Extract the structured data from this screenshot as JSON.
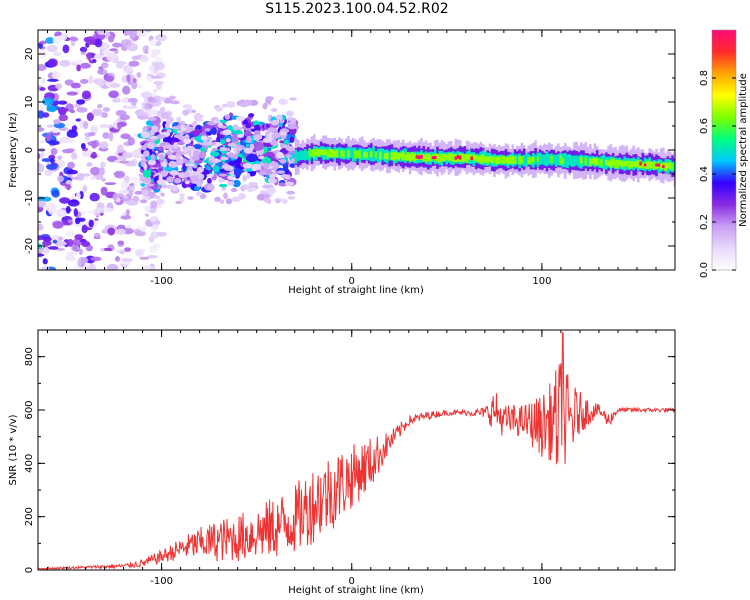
{
  "title": "S115.2023.100.04.52.R02",
  "chart_data": [
    {
      "type": "heatmap",
      "xlabel": "Height of straight line (km)",
      "ylabel": "Frequency (Hz)",
      "xlim": [
        -165,
        170
      ],
      "ylim": [
        -25,
        25
      ],
      "xticks": [
        -100,
        0,
        100
      ],
      "yticks": [
        -20,
        -10,
        0,
        10,
        20
      ],
      "xtick_labels": [
        "-100",
        "0",
        "100"
      ],
      "ytick_labels": [
        "-20",
        "-10",
        "0",
        "10",
        "20"
      ],
      "colorbar": {
        "label": "Normalized spectral amplitude",
        "range": [
          0,
          1
        ],
        "ticks": [
          0.0,
          0.2,
          0.4,
          0.6,
          0.8
        ],
        "tick_labels": [
          "0.0",
          "0.2",
          "0.4",
          "0.6",
          "0.8"
        ],
        "colors": [
          "#ffffff",
          "#e8d8fb",
          "#c8a0f4",
          "#8a2be2",
          "#3300ff",
          "#00c8ff",
          "#00ff7f",
          "#7fff00",
          "#ffff00",
          "#ffa500",
          "#ff2a2a",
          "#ff0a78"
        ]
      },
      "ridge": {
        "x": [
          -30,
          -20,
          0,
          20,
          40,
          60,
          80,
          100,
          120,
          140,
          160,
          170
        ],
        "frequency": [
          -1.5,
          -0.5,
          -0.8,
          -1.2,
          -1.6,
          -1.6,
          -2.2,
          -2.0,
          -2.3,
          -2.8,
          -3.2,
          -3.5
        ],
        "amplitude": [
          0.45,
          0.75,
          0.55,
          0.65,
          0.85,
          0.75,
          0.7,
          0.55,
          0.6,
          0.7,
          0.85,
          0.6
        ]
      },
      "noise_region_x": [
        -165,
        -110
      ],
      "scattered_region_x": [
        -110,
        -30
      ]
    },
    {
      "type": "line",
      "xlabel": "Height of straight line (km)",
      "ylabel": "SNR (10 * v/v)",
      "xlim": [
        -165,
        170
      ],
      "ylim": [
        0,
        900
      ],
      "xticks": [
        -100,
        0,
        100
      ],
      "yticks": [
        0,
        200,
        400,
        600,
        800
      ],
      "xtick_labels": [
        "-100",
        "0",
        "100"
      ],
      "ytick_labels": [
        "0",
        "200",
        "400",
        "600",
        "800"
      ],
      "series": [
        {
          "color": "#ee3333",
          "envelope_x": [
            -165,
            -140,
            -120,
            -110,
            -100,
            -90,
            -80,
            -70,
            -60,
            -50,
            -40,
            -30,
            -20,
            -10,
            0,
            10,
            20,
            30,
            40,
            50,
            60,
            70,
            75,
            80,
            90,
            100,
            105,
            110,
            115,
            120,
            130,
            135,
            140,
            150,
            160,
            170
          ],
          "envelope_mean": [
            5,
            10,
            15,
            25,
            50,
            80,
            100,
            110,
            120,
            140,
            160,
            190,
            250,
            300,
            350,
            400,
            480,
            560,
            580,
            590,
            590,
            590,
            600,
            560,
            560,
            540,
            560,
            550,
            560,
            590,
            600,
            560,
            600,
            600,
            600,
            600
          ],
          "envelope_amplitude": [
            3,
            5,
            8,
            15,
            25,
            40,
            60,
            80,
            90,
            100,
            120,
            130,
            150,
            150,
            120,
            100,
            40,
            20,
            15,
            10,
            10,
            20,
            80,
            60,
            60,
            120,
            150,
            260,
            150,
            80,
            20,
            30,
            8,
            8,
            8,
            8
          ],
          "peak_x": 111,
          "peak_y": 890
        }
      ]
    }
  ]
}
